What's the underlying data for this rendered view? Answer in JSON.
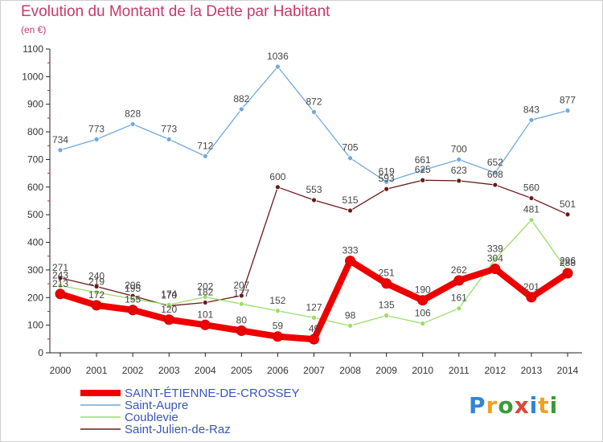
{
  "header": {
    "title": "Evolution du Montant de la Dette par Habitant",
    "unit": "(en €)"
  },
  "logo": {
    "text": "Proxiti",
    "colors": [
      "#2e86d6",
      "#f0a020",
      "#3a9a3a",
      "#d8483a",
      "#2e86d6",
      "#f0a020",
      "#3a9a3a"
    ]
  },
  "chart_data": {
    "type": "line",
    "title": "Evolution du Montant de la Dette par Habitant",
    "subtitle": "(en €)",
    "x": [
      "2000",
      "2001",
      "2002",
      "2003",
      "2004",
      "2005",
      "2006",
      "2007",
      "2008",
      "2009",
      "2010",
      "2011",
      "2012",
      "2013",
      "2014"
    ],
    "ylim": [
      0,
      1100
    ],
    "yticks": [
      0,
      100,
      200,
      300,
      400,
      500,
      600,
      700,
      800,
      900,
      1000,
      1100
    ],
    "grid": false,
    "legend_position": "bottom-left",
    "series": [
      {
        "name": "SAINT-ÉTIENNE-DE-CROSSEY",
        "color": "#ee0000",
        "width": 8,
        "marker": 6,
        "values": [
          213,
          172,
          155,
          120,
          101,
          80,
          59,
          49,
          333,
          251,
          190,
          262,
          304,
          201,
          288
        ]
      },
      {
        "name": "Saint-Aupre",
        "color": "#6fa8dc",
        "width": 1.3,
        "marker": 3,
        "values": [
          734,
          773,
          828,
          773,
          712,
          882,
          1036,
          872,
          705,
          619,
          661,
          700,
          652,
          843,
          877
        ]
      },
      {
        "name": "Coublevie",
        "color": "#99dd66",
        "width": 1.3,
        "marker": 3,
        "values": [
          243,
          219,
          195,
          174,
          202,
          177,
          152,
          127,
          98,
          135,
          106,
          161,
          339,
          481,
          296
        ]
      },
      {
        "name": "Saint-Julien-de-Raz",
        "color": "#6b1a1a",
        "width": 1.3,
        "marker": 3,
        "values": [
          271,
          240,
          206,
          170,
          182,
          207,
          600,
          553,
          515,
          593,
          625,
          623,
          608,
          560,
          501
        ]
      }
    ]
  }
}
